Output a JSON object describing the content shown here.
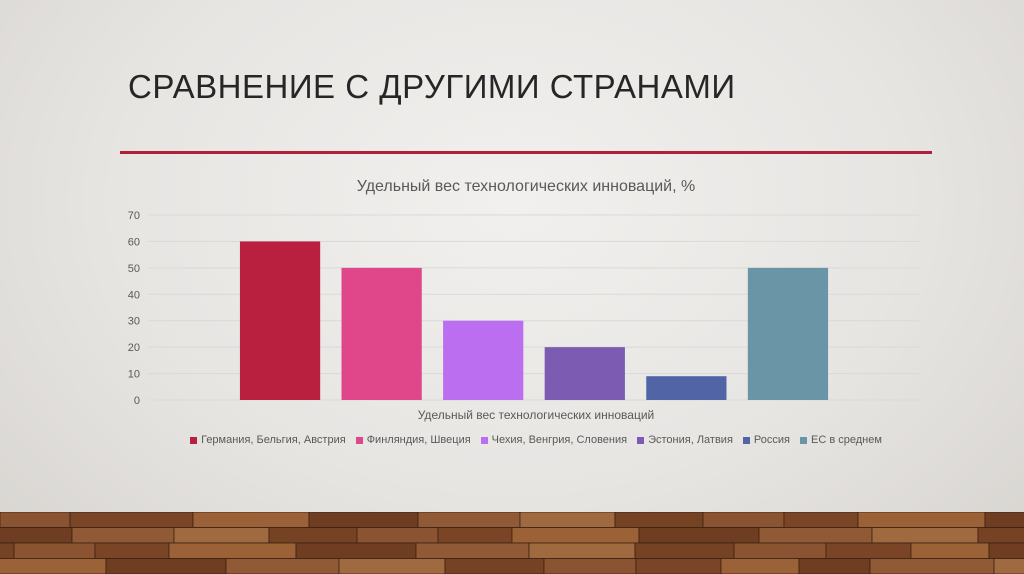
{
  "slide": {
    "title": "СРАВНЕНИЕ С ДРУГИМИ СТРАНАМИ",
    "accent_color": "#b11f3a"
  },
  "chart_data": {
    "type": "bar",
    "title": "Удельный вес технологических инноваций, %",
    "xlabel": "Удельный вес технологических инноваций",
    "ylabel": "",
    "ylim": [
      0,
      70
    ],
    "yticks": [
      0,
      10,
      20,
      30,
      40,
      50,
      60,
      70
    ],
    "grid": true,
    "legend_position": "bottom",
    "categories": [
      "Удельный вес технологических инноваций"
    ],
    "series": [
      {
        "name": "Германия, Бельгия, Австрия",
        "values": [
          60
        ],
        "color": "#b91f3f"
      },
      {
        "name": "Финляндия, Швеция",
        "values": [
          50
        ],
        "color": "#e0478a"
      },
      {
        "name": "Чехия, Венгрия, Словения",
        "values": [
          30
        ],
        "color": "#bb6ff0"
      },
      {
        "name": "Эстония, Латвия",
        "values": [
          20
        ],
        "color": "#7b5cb2"
      },
      {
        "name": "Россия",
        "values": [
          9
        ],
        "color": "#5165a6"
      },
      {
        "name": "ЕС в среднем",
        "values": [
          50
        ],
        "color": "#6a95a6"
      }
    ]
  }
}
